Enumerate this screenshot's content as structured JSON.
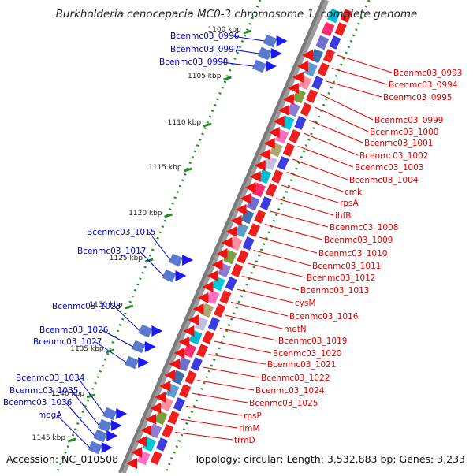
{
  "title": "Burkholderia cenocepacia MC0-3 chromosome 1, complete genome",
  "footer": {
    "accession": "Accession: NC_010508",
    "summary": "Topology: circular; Length: 3,532,883 bp; Genes: 3,233"
  },
  "colors": {
    "forward_label": "#0000cc",
    "reverse_label": "#e00000",
    "tick_ring": "#228b22",
    "backbone": "#7a7a7a"
  },
  "ticks": [
    "1100 kbp",
    "1105 kbp",
    "1110 kbp",
    "1115 kbp",
    "1120 kbp",
    "1125 kbp",
    "1130 kbp",
    "1135 kbp",
    "1140 kbp",
    "1145 kbp"
  ],
  "forward_genes": [
    "Bcenmc03_0996",
    "Bcenmc03_0997",
    "Bcenmc03_0998",
    "Bcenmc03_1015",
    "Bcenmc03_1017",
    "Bcenmc03_1023",
    "Bcenmc03_1026",
    "Bcenmc03_1027",
    "Bcenmc03_1034",
    "Bcenmc03_1035",
    "Bcenmc03_1036",
    "mogA"
  ],
  "reverse_genes": [
    "Bcenmc03_0993",
    "Bcenmc03_0994",
    "Bcenmc03_0995",
    "Bcenmc03_0999",
    "Bcenmc03_1000",
    "Bcenmc03_1001",
    "Bcenmc03_1002",
    "Bcenmc03_1003",
    "Bcenmc03_1004",
    "cmk",
    "rpsA",
    "ihfB",
    "Bcenmc03_1008",
    "Bcenmc03_1009",
    "Bcenmc03_1010",
    "Bcenmc03_1011",
    "Bcenmc03_1012",
    "Bcenmc03_1013",
    "cysM",
    "Bcenmc03_1016",
    "metN",
    "Bcenmc03_1019",
    "Bcenmc03_1020",
    "Bcenmc03_1021",
    "Bcenmc03_1022",
    "Bcenmc03_1024",
    "Bcenmc03_1025",
    "rpsP",
    "rimM",
    "trmD"
  ]
}
